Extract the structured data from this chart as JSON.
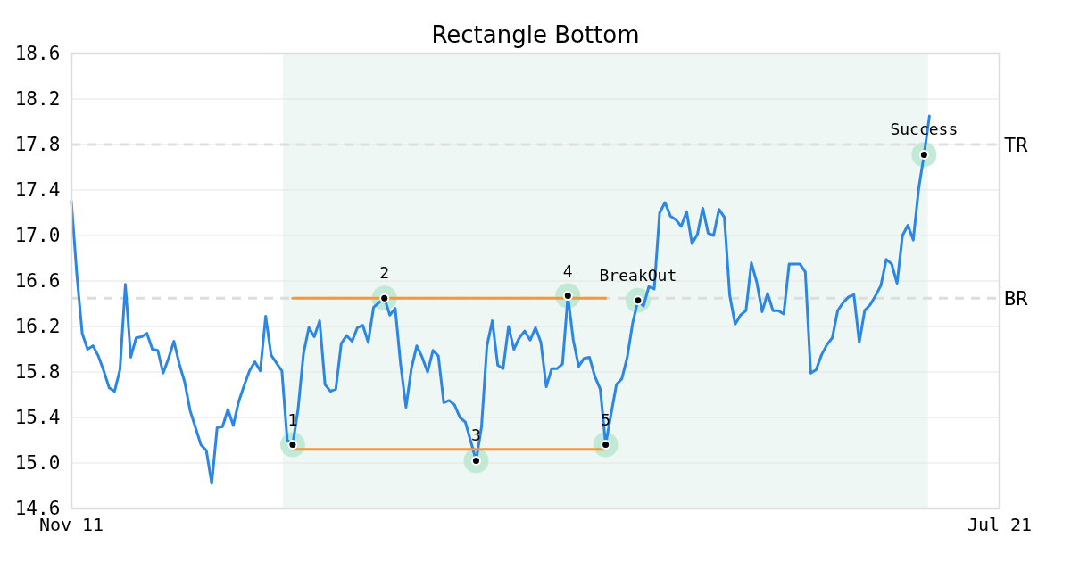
{
  "chart_data": {
    "type": "line",
    "title": "Rectangle Bottom",
    "categories": [
      "Nov 11",
      null,
      null,
      null,
      null,
      null,
      null,
      null,
      null,
      null,
      null,
      null,
      null,
      null,
      null,
      null,
      null,
      null,
      null,
      null,
      null,
      null,
      null,
      null,
      null,
      null,
      null,
      null,
      null,
      null,
      null,
      null,
      null,
      null,
      null,
      null,
      null,
      null,
      null,
      null,
      null,
      null,
      null,
      null,
      null,
      null,
      null,
      null,
      null,
      null,
      null,
      null,
      null,
      null,
      null,
      null,
      null,
      null,
      null,
      null,
      null,
      null,
      null,
      null,
      null,
      null,
      null,
      null,
      null,
      null,
      null,
      null,
      null,
      null,
      null,
      null,
      null,
      null,
      null,
      null,
      null,
      null,
      null,
      null,
      null,
      null,
      null,
      null,
      null,
      null,
      null,
      null,
      null,
      null,
      null,
      null,
      null,
      null,
      null,
      null,
      null,
      null,
      null,
      null,
      null,
      null,
      null,
      null,
      null,
      null,
      null,
      null,
      null,
      null,
      null,
      null,
      null,
      null,
      null,
      null,
      null,
      null,
      null,
      null,
      null,
      null,
      null,
      null,
      null,
      null,
      null,
      null,
      null,
      null,
      null,
      null,
      null,
      null,
      null,
      null,
      null,
      null,
      null,
      null,
      null,
      null,
      null,
      null,
      null,
      null,
      null,
      null,
      null,
      null,
      null,
      null,
      null,
      null,
      null,
      null,
      null,
      null,
      null,
      null,
      null,
      null,
      null,
      null,
      null,
      null,
      null,
      null,
      "Jul 21"
    ],
    "ylim": [
      14.6,
      18.6
    ],
    "yticks": [
      14.6,
      {
        "value": 15,
        "label": "15.0"
      },
      15.4,
      15.8,
      16.2,
      16.6,
      {
        "value": 17,
        "label": "17.0"
      },
      17.4,
      17.8,
      18.2,
      18.6
    ],
    "grid": "y",
    "ref_lines": [
      {
        "axis": "y",
        "value": 17.8,
        "label": "TR",
        "color": "#dddddd",
        "line_style": "dashed"
      },
      {
        "axis": "y",
        "value": 16.45,
        "label": "BR",
        "color": "#dddddd",
        "line_style": "dashed"
      }
    ],
    "series": [
      {
        "color": "#2b86e6",
        "values": [
          17.3,
          16.66,
          16.14,
          16.0,
          16.03,
          15.94,
          15.81,
          15.66,
          15.63,
          15.82,
          16.57,
          15.93,
          16.1,
          16.11,
          16.14,
          16.0,
          15.99,
          15.79,
          15.92,
          16.07,
          15.87,
          15.71,
          15.46,
          15.31,
          15.16,
          15.11,
          14.82,
          15.31,
          15.32,
          15.47,
          15.33,
          15.54,
          15.68,
          15.81,
          15.89,
          15.81,
          16.29,
          15.95,
          15.88,
          15.81,
          15.2,
          15.16,
          15.47,
          15.96,
          16.19,
          16.11,
          16.25,
          15.69,
          15.63,
          15.65,
          16.05,
          16.12,
          16.07,
          16.19,
          16.21,
          16.06,
          16.37,
          16.41,
          16.45,
          16.3,
          16.36,
          15.87,
          15.49,
          15.83,
          16.03,
          15.93,
          15.8,
          15.99,
          15.94,
          15.53,
          15.55,
          15.51,
          15.4,
          15.36,
          15.19,
          15.02,
          15.32,
          16.03,
          16.25,
          15.86,
          15.83,
          16.2,
          16.0,
          16.1,
          16.16,
          16.08,
          16.19,
          16.06,
          15.67,
          15.83,
          15.83,
          15.87,
          16.47,
          16.08,
          15.85,
          15.92,
          15.93,
          15.76,
          15.65,
          15.16,
          15.43,
          15.69,
          15.74,
          15.93,
          16.23,
          16.43,
          16.38,
          16.55,
          16.53,
          17.2,
          17.29,
          17.17,
          17.14,
          17.08,
          17.21,
          16.93,
          17.01,
          17.24,
          17.02,
          17.0,
          17.23,
          17.16,
          16.47,
          16.22,
          16.3,
          16.34,
          16.76,
          16.59,
          16.33,
          16.49,
          16.34,
          16.34,
          16.31,
          16.75,
          16.75,
          16.75,
          16.68,
          15.79,
          15.82,
          15.95,
          16.04,
          16.1,
          16.34,
          16.41,
          16.46,
          16.48,
          16.06,
          16.34,
          16.39,
          16.47,
          16.56,
          16.79,
          16.75,
          16.58,
          17.0,
          17.09,
          16.96,
          17.41,
          17.71,
          18.05,
          null,
          null,
          null,
          null,
          null,
          null,
          null,
          null,
          null,
          null,
          null,
          null,
          null
        ]
      },
      {
        "color": "#f7973d",
        "values": [
          null,
          null,
          null,
          null,
          null,
          null,
          null,
          null,
          null,
          null,
          null,
          null,
          null,
          null,
          null,
          null,
          null,
          null,
          null,
          null,
          null,
          null,
          null,
          null,
          null,
          null,
          null,
          null,
          null,
          null,
          null,
          null,
          null,
          null,
          null,
          null,
          null,
          null,
          null,
          null,
          null,
          16.45,
          16.45,
          16.45,
          16.45,
          16.45,
          16.45,
          16.45,
          16.45,
          16.45,
          16.45,
          16.45,
          16.45,
          16.45,
          16.45,
          16.45,
          16.45,
          16.45,
          16.45,
          16.45,
          16.45,
          16.45,
          16.45,
          16.45,
          16.45,
          16.45,
          16.45,
          16.45,
          16.45,
          16.45,
          16.45,
          16.45,
          16.45,
          16.45,
          16.45,
          16.45,
          16.45,
          16.45,
          16.45,
          16.45,
          16.45,
          16.45,
          16.45,
          16.45,
          16.45,
          16.45,
          16.45,
          16.45,
          16.45,
          16.45,
          16.45,
          16.45,
          16.45,
          16.45,
          16.45,
          16.45,
          16.45,
          16.45,
          16.45,
          16.45,
          null,
          null,
          null,
          null,
          null,
          null,
          null,
          null,
          null,
          null,
          null,
          null,
          null,
          null,
          null,
          null,
          null,
          null,
          null,
          null,
          null,
          null,
          null,
          null,
          null,
          null,
          null,
          null,
          null,
          null,
          null,
          null,
          null,
          null,
          null,
          null,
          null,
          null,
          null,
          null,
          null,
          null,
          null,
          null,
          null,
          null,
          null,
          null,
          null,
          null,
          null,
          null,
          null,
          null,
          null,
          null,
          null,
          null,
          null,
          null,
          null,
          null,
          null,
          null,
          null,
          null,
          null,
          null,
          null,
          null,
          null,
          null,
          null
        ]
      },
      {
        "color": "#f7973d",
        "values": [
          null,
          null,
          null,
          null,
          null,
          null,
          null,
          null,
          null,
          null,
          null,
          null,
          null,
          null,
          null,
          null,
          null,
          null,
          null,
          null,
          null,
          null,
          null,
          null,
          null,
          null,
          null,
          null,
          null,
          null,
          null,
          null,
          null,
          null,
          null,
          null,
          null,
          null,
          null,
          null,
          null,
          15.12,
          15.12,
          15.12,
          15.12,
          15.12,
          15.12,
          15.12,
          15.12,
          15.12,
          15.12,
          15.12,
          15.12,
          15.12,
          15.12,
          15.12,
          15.12,
          15.12,
          15.12,
          15.12,
          15.12,
          15.12,
          15.12,
          15.12,
          15.12,
          15.12,
          15.12,
          15.12,
          15.12,
          15.12,
          15.12,
          15.12,
          15.12,
          15.12,
          15.12,
          15.12,
          15.12,
          15.12,
          15.12,
          15.12,
          15.12,
          15.12,
          15.12,
          15.12,
          15.12,
          15.12,
          15.12,
          15.12,
          15.12,
          15.12,
          15.12,
          15.12,
          15.12,
          15.12,
          15.12,
          15.12,
          15.12,
          15.12,
          15.12,
          15.12,
          null,
          null,
          null,
          null,
          null,
          null,
          null,
          null,
          null,
          null,
          null,
          null,
          null,
          null,
          null,
          null,
          null,
          null,
          null,
          null,
          null,
          null,
          null,
          null,
          null,
          null,
          null,
          null,
          null,
          null,
          null,
          null,
          null,
          null,
          null,
          null,
          null,
          null,
          null,
          null,
          null,
          null,
          null,
          null,
          null,
          null,
          null,
          null,
          null,
          null,
          null,
          null,
          null,
          null,
          null,
          null,
          null,
          null,
          null,
          null,
          null,
          null,
          null,
          null,
          null,
          null,
          null,
          null,
          null,
          null,
          null,
          null,
          null
        ]
      },
      {
        "type": "scatter",
        "color": "#000000",
        "marker": "circle",
        "values": [
          null,
          null,
          null,
          null,
          null,
          null,
          null,
          null,
          null,
          null,
          null,
          null,
          null,
          null,
          null,
          null,
          null,
          null,
          null,
          null,
          null,
          null,
          null,
          null,
          null,
          null,
          null,
          null,
          null,
          null,
          null,
          null,
          null,
          null,
          null,
          null,
          null,
          null,
          null,
          null,
          null,
          15.16,
          null,
          null,
          null,
          null,
          null,
          null,
          null,
          null,
          null,
          null,
          null,
          null,
          null,
          null,
          null,
          null,
          16.45,
          null,
          null,
          null,
          null,
          null,
          null,
          null,
          null,
          null,
          null,
          null,
          null,
          null,
          null,
          null,
          null,
          15.02,
          null,
          null,
          null,
          null,
          null,
          null,
          null,
          null,
          null,
          null,
          null,
          null,
          null,
          null,
          null,
          null,
          16.47,
          null,
          null,
          null,
          null,
          null,
          null,
          15.16,
          null,
          null,
          null,
          null,
          null,
          16.43,
          null,
          null,
          null,
          null,
          null,
          null,
          null,
          null,
          null,
          null,
          null,
          null,
          null,
          null,
          null,
          null,
          null,
          null,
          null,
          null,
          null,
          null,
          null,
          null,
          null,
          null,
          null,
          null,
          null,
          null,
          null,
          null,
          null,
          null,
          null,
          null,
          null,
          null,
          null,
          null,
          null,
          null,
          null,
          null,
          null,
          null,
          null,
          null,
          null,
          null,
          null,
          null,
          17.71,
          null,
          null,
          null,
          null,
          null,
          null,
          null,
          null,
          null,
          null,
          null,
          null,
          null,
          null
        ]
      }
    ],
    "annotations": [
      {
        "text": "1",
        "y": 15.16
      },
      {
        "text": "2",
        "y": 16.45
      },
      {
        "text": "3",
        "y": 15.02
      },
      {
        "text": "4",
        "y": 16.47
      },
      {
        "text": "5",
        "y": 15.16
      },
      {
        "text": "BreakOut",
        "y": 16.43
      },
      {
        "text": "Success",
        "y": 17.71
      }
    ]
  }
}
